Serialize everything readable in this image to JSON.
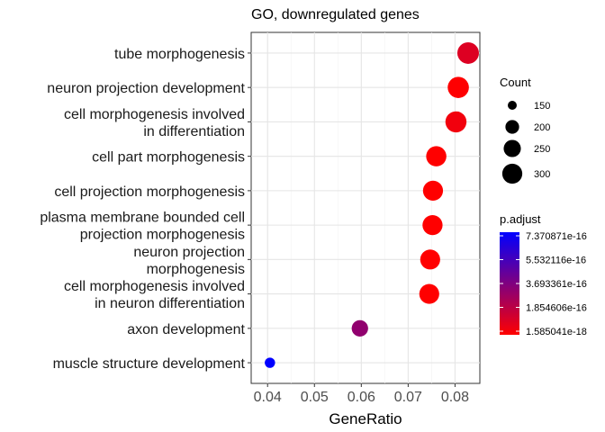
{
  "chart_data": {
    "type": "scatter",
    "title": "GO, downregulated genes",
    "xlabel": "GeneRatio",
    "ylabel": "",
    "xlim": [
      0.0365,
      0.0853
    ],
    "x_ticks": [
      0.04,
      0.05,
      0.06,
      0.07,
      0.08
    ],
    "x_tick_labels": [
      "0.04",
      "0.05",
      "0.06",
      "0.07",
      "0.08"
    ],
    "grid": true,
    "categories": [
      [
        "tube morphogenesis"
      ],
      [
        "neuron projection development"
      ],
      [
        "cell morphogenesis involved",
        "in differentiation"
      ],
      [
        "cell part morphogenesis"
      ],
      [
        "cell projection morphogenesis"
      ],
      [
        "plasma membrane bounded cell",
        "projection morphogenesis"
      ],
      [
        "neuron projection",
        "morphogenesis"
      ],
      [
        "cell morphogenesis involved",
        "in neuron differentiation"
      ],
      [
        "axon development"
      ],
      [
        "muscle structure development"
      ]
    ],
    "gene_ratio": [
      0.0828,
      0.0807,
      0.0802,
      0.076,
      0.0753,
      0.0752,
      0.0747,
      0.0745,
      0.0597,
      0.0405
    ],
    "count": [
      330,
      322,
      320,
      303,
      300,
      300,
      298,
      297,
      238,
      162
    ],
    "p_adjust": [
      1e-16,
      5e-18,
      4e-17,
      1.585041e-18,
      1.585041e-18,
      1.585041e-18,
      1.585041e-18,
      1.585041e-18,
      3.2e-16,
      7.370871e-16
    ],
    "size_legend": {
      "title": "Count",
      "values": [
        150,
        200,
        250,
        300
      ],
      "labels": [
        "150",
        "200",
        "250",
        "300"
      ],
      "placement": "right"
    },
    "color_legend": {
      "title": "p.adjust",
      "min": 1.585041e-18,
      "max": 7.370871e-16,
      "labels": [
        "7.370871e-16",
        "5.532116e-16",
        "3.693361e-16",
        "1.854606e-16",
        "1.585041e-18"
      ],
      "low_color": "#ff0000",
      "high_color": "#0000ff",
      "placement": "right"
    }
  }
}
